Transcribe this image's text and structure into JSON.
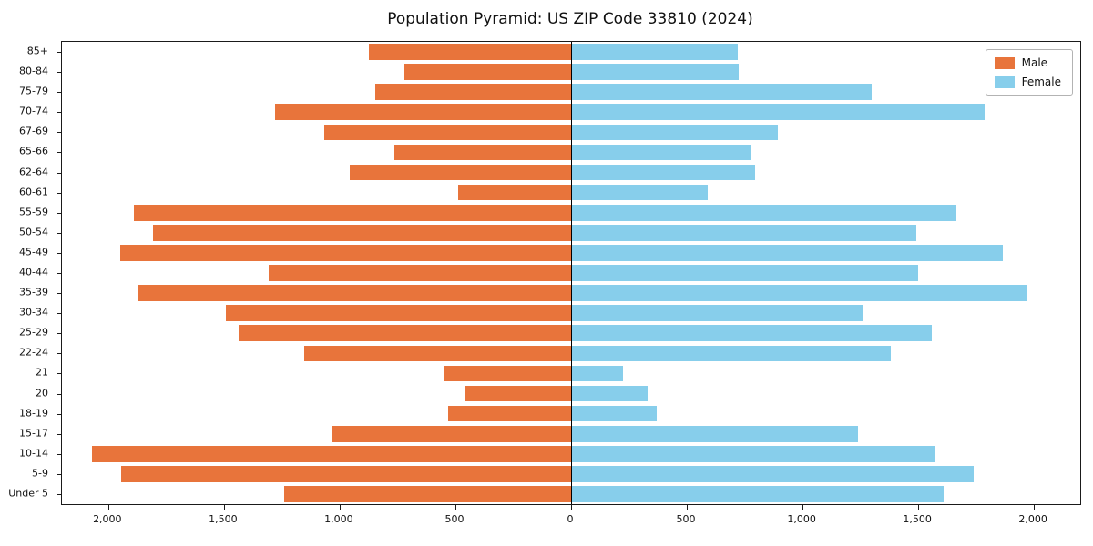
{
  "chart_data": {
    "type": "bar",
    "orientation": "horizontal-pyramid",
    "title": "Population Pyramid: US ZIP Code 33810 (2024)",
    "categories_top_to_bottom": [
      "85+",
      "80-84",
      "75-79",
      "70-74",
      "67-69",
      "65-66",
      "62-64",
      "60-61",
      "55-59",
      "50-54",
      "45-49",
      "40-44",
      "35-39",
      "30-34",
      "25-29",
      "22-24",
      "21",
      "20",
      "18-19",
      "15-17",
      "10-14",
      "5-9",
      "Under 5"
    ],
    "series": [
      {
        "name": "Male",
        "side": "left",
        "color": "#e8743b",
        "values": [
          875,
          720,
          845,
          1280,
          1065,
          765,
          955,
          490,
          1890,
          1805,
          1950,
          1305,
          1875,
          1490,
          1435,
          1155,
          550,
          455,
          530,
          1030,
          2070,
          1945,
          1240
        ]
      },
      {
        "name": "Female",
        "side": "right",
        "color": "#87ceeb",
        "values": [
          720,
          725,
          1300,
          1785,
          895,
          775,
          795,
          590,
          1665,
          1490,
          1865,
          1500,
          1970,
          1265,
          1560,
          1380,
          225,
          330,
          370,
          1240,
          1575,
          1740,
          1610
        ]
      }
    ],
    "x_axis": {
      "tick_values": [
        -2000,
        -1500,
        -1000,
        -500,
        0,
        500,
        1000,
        1500,
        2000
      ],
      "tick_labels": [
        "2,000",
        "1,500",
        "1,000",
        "500",
        "0",
        "500",
        "1,000",
        "1,500",
        "2,000"
      ],
      "max_abs": 2200,
      "xlim": [
        -2200,
        2200
      ]
    },
    "legend": {
      "position": "upper right",
      "entries": [
        "Male",
        "Female"
      ]
    },
    "grid": false
  }
}
